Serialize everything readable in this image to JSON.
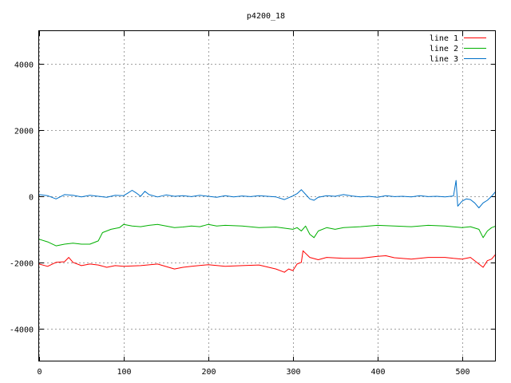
{
  "chart_data": {
    "type": "line",
    "title": "p4200_18",
    "xlabel": "",
    "ylabel": "",
    "xlim": [
      0,
      540
    ],
    "ylim": [
      -5000,
      5000
    ],
    "x_ticks": [
      0,
      100,
      200,
      300,
      400,
      500
    ],
    "y_ticks": [
      -4000,
      -2000,
      0,
      2000,
      4000
    ],
    "grid": true,
    "legend_position": "top-right",
    "series": [
      {
        "name": "line 1",
        "color": "#ff0000",
        "points": [
          [
            0,
            -2050
          ],
          [
            10,
            -2120
          ],
          [
            20,
            -2000
          ],
          [
            30,
            -1980
          ],
          [
            35,
            -1850
          ],
          [
            40,
            -2000
          ],
          [
            50,
            -2100
          ],
          [
            60,
            -2050
          ],
          [
            70,
            -2080
          ],
          [
            80,
            -2150
          ],
          [
            90,
            -2100
          ],
          [
            100,
            -2120
          ],
          [
            120,
            -2100
          ],
          [
            140,
            -2050
          ],
          [
            160,
            -2200
          ],
          [
            170,
            -2150
          ],
          [
            180,
            -2120
          ],
          [
            200,
            -2070
          ],
          [
            220,
            -2120
          ],
          [
            240,
            -2100
          ],
          [
            260,
            -2080
          ],
          [
            280,
            -2200
          ],
          [
            290,
            -2300
          ],
          [
            295,
            -2200
          ],
          [
            300,
            -2250
          ],
          [
            305,
            -2050
          ],
          [
            310,
            -2000
          ],
          [
            312,
            -1650
          ],
          [
            320,
            -1850
          ],
          [
            330,
            -1920
          ],
          [
            340,
            -1850
          ],
          [
            360,
            -1880
          ],
          [
            380,
            -1880
          ],
          [
            400,
            -1820
          ],
          [
            410,
            -1800
          ],
          [
            420,
            -1860
          ],
          [
            440,
            -1900
          ],
          [
            460,
            -1850
          ],
          [
            480,
            -1850
          ],
          [
            490,
            -1880
          ],
          [
            500,
            -1900
          ],
          [
            510,
            -1850
          ],
          [
            520,
            -2050
          ],
          [
            525,
            -2150
          ],
          [
            530,
            -1950
          ],
          [
            535,
            -1900
          ],
          [
            540,
            -1750
          ]
        ]
      },
      {
        "name": "line 2",
        "color": "#00b000",
        "points": [
          [
            0,
            -1300
          ],
          [
            10,
            -1380
          ],
          [
            20,
            -1500
          ],
          [
            30,
            -1450
          ],
          [
            40,
            -1420
          ],
          [
            50,
            -1450
          ],
          [
            60,
            -1450
          ],
          [
            70,
            -1350
          ],
          [
            75,
            -1100
          ],
          [
            85,
            -1000
          ],
          [
            95,
            -950
          ],
          [
            100,
            -850
          ],
          [
            110,
            -900
          ],
          [
            120,
            -920
          ],
          [
            130,
            -880
          ],
          [
            140,
            -850
          ],
          [
            150,
            -900
          ],
          [
            160,
            -950
          ],
          [
            170,
            -930
          ],
          [
            180,
            -900
          ],
          [
            190,
            -920
          ],
          [
            200,
            -850
          ],
          [
            210,
            -900
          ],
          [
            220,
            -880
          ],
          [
            240,
            -900
          ],
          [
            260,
            -950
          ],
          [
            280,
            -930
          ],
          [
            300,
            -1000
          ],
          [
            305,
            -950
          ],
          [
            310,
            -1050
          ],
          [
            315,
            -900
          ],
          [
            320,
            -1150
          ],
          [
            325,
            -1250
          ],
          [
            330,
            -1050
          ],
          [
            340,
            -950
          ],
          [
            350,
            -1000
          ],
          [
            360,
            -950
          ],
          [
            380,
            -920
          ],
          [
            400,
            -880
          ],
          [
            420,
            -900
          ],
          [
            440,
            -920
          ],
          [
            460,
            -880
          ],
          [
            480,
            -900
          ],
          [
            500,
            -950
          ],
          [
            510,
            -920
          ],
          [
            520,
            -1000
          ],
          [
            525,
            -1250
          ],
          [
            530,
            -1050
          ],
          [
            535,
            -950
          ],
          [
            540,
            -900
          ]
        ]
      },
      {
        "name": "line 3",
        "color": "#0070c8",
        "points": [
          [
            0,
            50
          ],
          [
            10,
            20
          ],
          [
            20,
            -80
          ],
          [
            30,
            50
          ],
          [
            40,
            30
          ],
          [
            50,
            -20
          ],
          [
            60,
            30
          ],
          [
            70,
            0
          ],
          [
            80,
            -30
          ],
          [
            90,
            30
          ],
          [
            100,
            20
          ],
          [
            105,
            100
          ],
          [
            110,
            180
          ],
          [
            115,
            100
          ],
          [
            120,
            0
          ],
          [
            125,
            150
          ],
          [
            130,
            50
          ],
          [
            140,
            -20
          ],
          [
            150,
            40
          ],
          [
            160,
            0
          ],
          [
            170,
            20
          ],
          [
            180,
            -10
          ],
          [
            190,
            30
          ],
          [
            200,
            0
          ],
          [
            210,
            -30
          ],
          [
            220,
            20
          ],
          [
            230,
            -20
          ],
          [
            240,
            10
          ],
          [
            250,
            -10
          ],
          [
            260,
            20
          ],
          [
            270,
            0
          ],
          [
            280,
            -20
          ],
          [
            290,
            -100
          ],
          [
            300,
            10
          ],
          [
            305,
            80
          ],
          [
            310,
            200
          ],
          [
            315,
            60
          ],
          [
            320,
            -80
          ],
          [
            325,
            -120
          ],
          [
            330,
            -30
          ],
          [
            340,
            20
          ],
          [
            350,
            0
          ],
          [
            360,
            50
          ],
          [
            370,
            10
          ],
          [
            380,
            -20
          ],
          [
            390,
            0
          ],
          [
            400,
            -30
          ],
          [
            410,
            20
          ],
          [
            420,
            -10
          ],
          [
            430,
            0
          ],
          [
            440,
            -20
          ],
          [
            450,
            20
          ],
          [
            460,
            -10
          ],
          [
            470,
            0
          ],
          [
            480,
            -20
          ],
          [
            490,
            10
          ],
          [
            493,
            480
          ],
          [
            495,
            -300
          ],
          [
            500,
            -150
          ],
          [
            505,
            -80
          ],
          [
            510,
            -100
          ],
          [
            515,
            -200
          ],
          [
            520,
            -350
          ],
          [
            525,
            -200
          ],
          [
            530,
            -120
          ],
          [
            535,
            0
          ],
          [
            540,
            150
          ]
        ]
      }
    ]
  }
}
